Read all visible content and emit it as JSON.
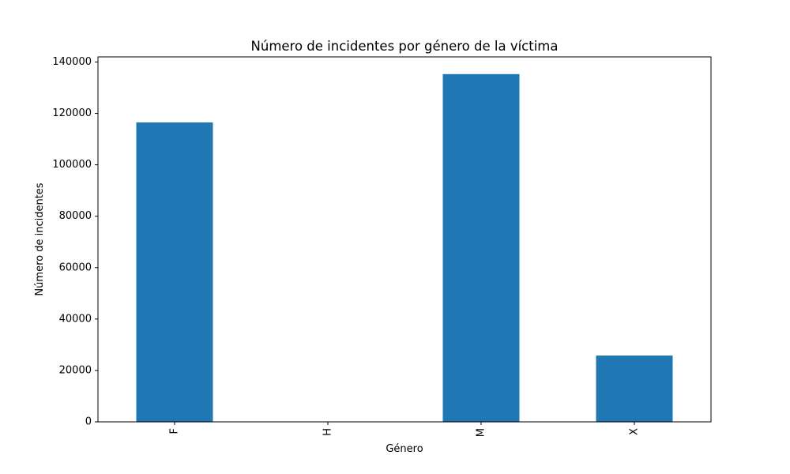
{
  "chart_data": {
    "type": "bar",
    "title": "Número de incidentes por género de la víctima",
    "xlabel": "Género",
    "ylabel": "Número de incidentes",
    "categories": [
      "F",
      "H",
      "M",
      "X"
    ],
    "values": [
      116500,
      10,
      135300,
      25800
    ],
    "ylim": [
      0,
      142000
    ],
    "yticks": [
      0,
      20000,
      40000,
      60000,
      80000,
      100000,
      120000,
      140000
    ],
    "bar_color": "#1f77b4",
    "grid": false,
    "legend": "none",
    "xtick_rotation": "vertical"
  }
}
